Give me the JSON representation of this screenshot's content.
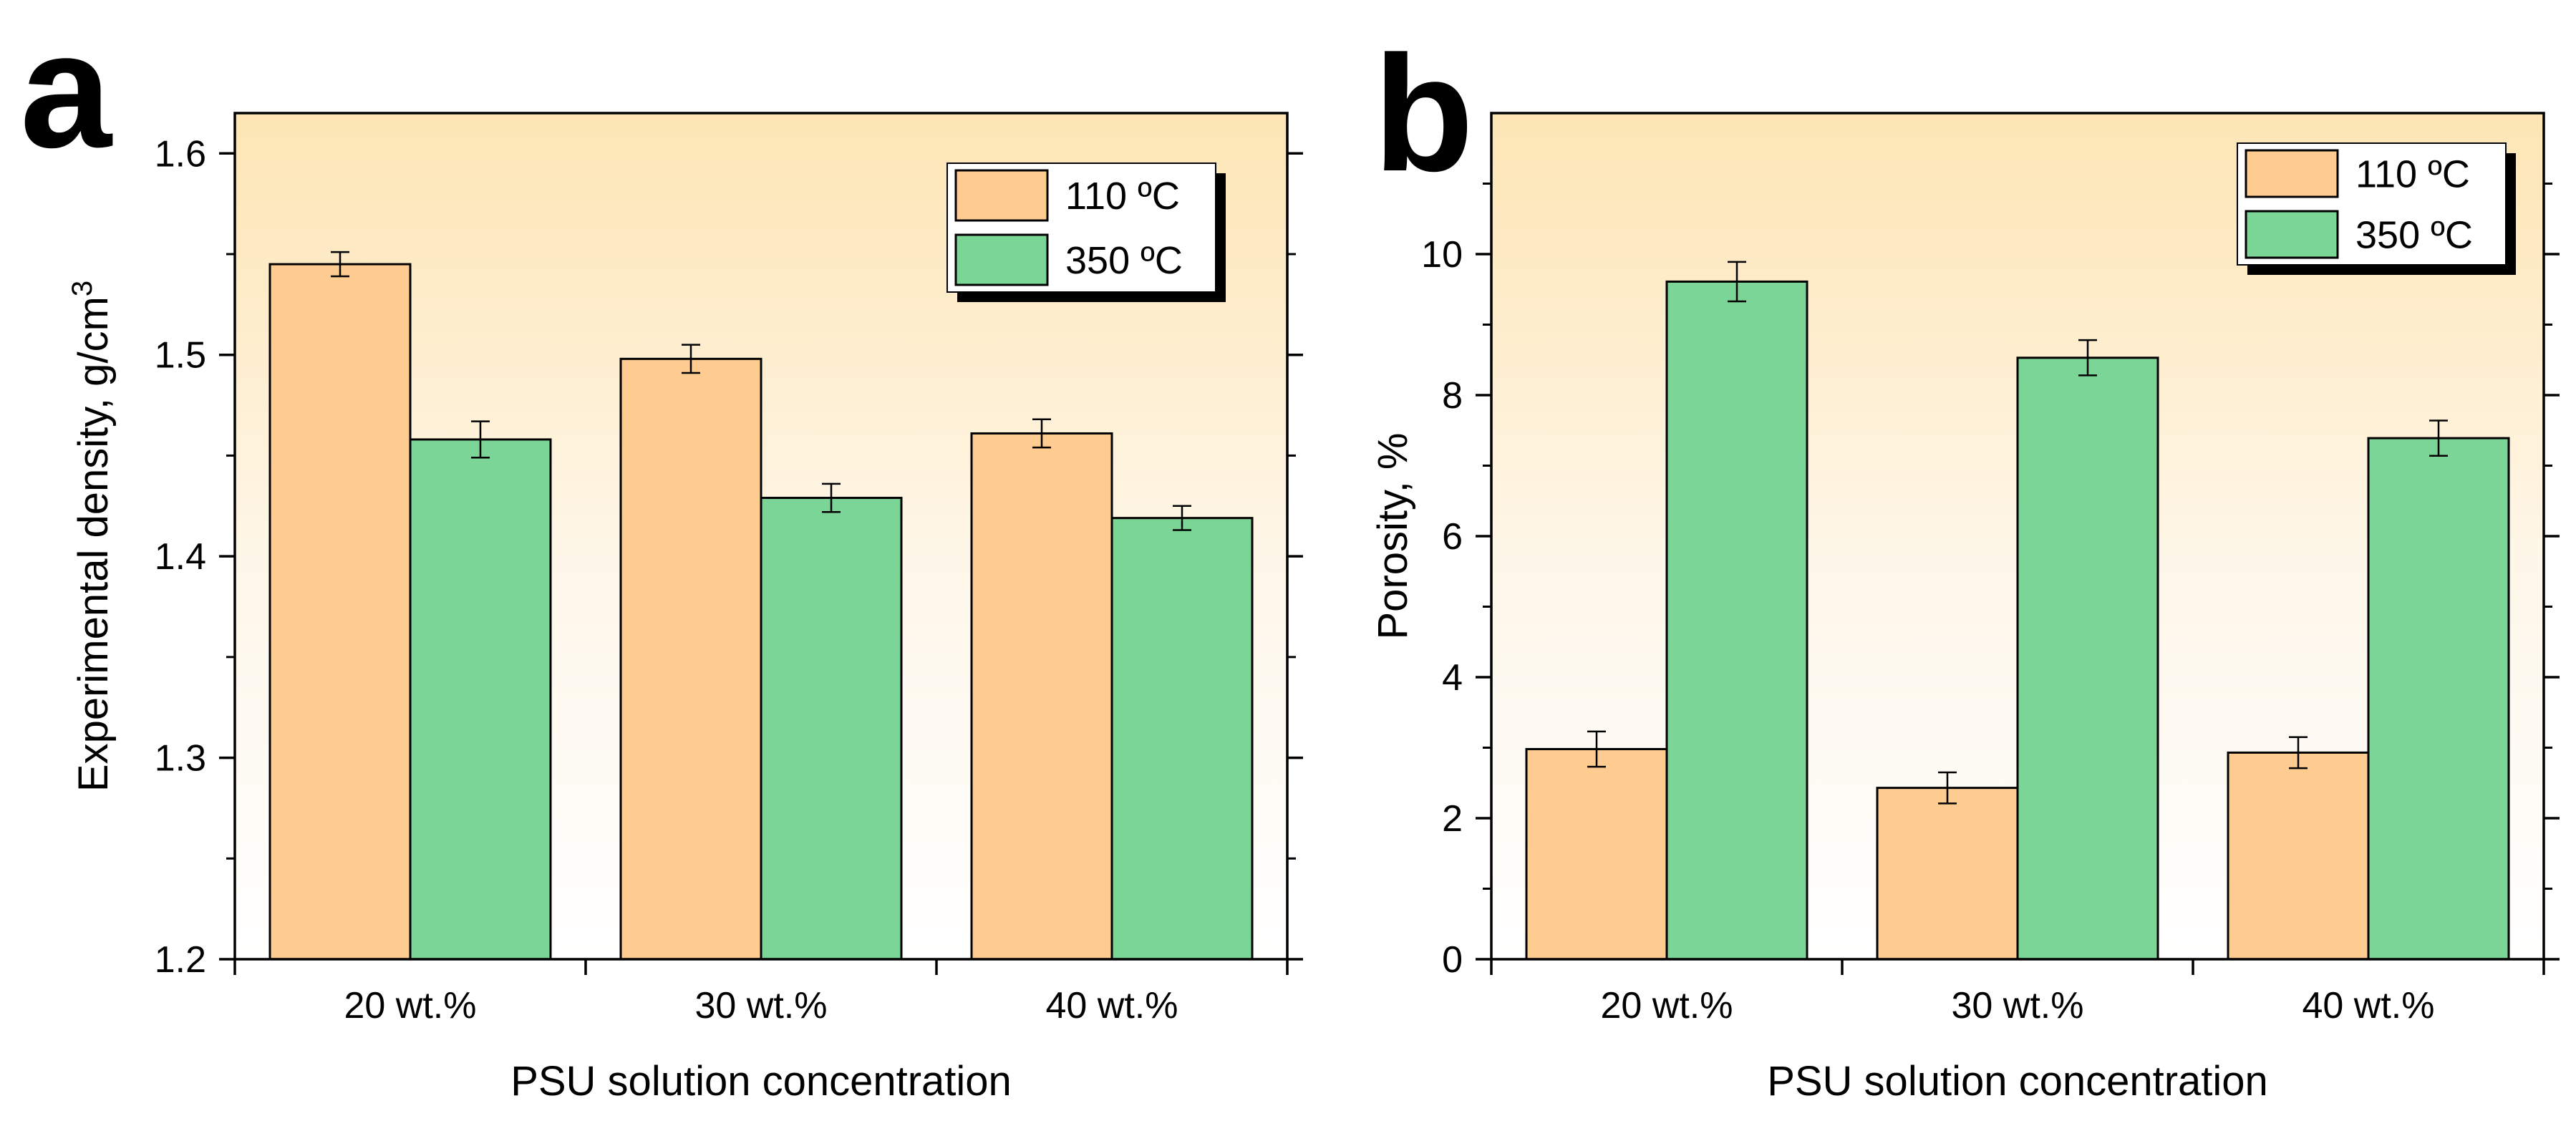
{
  "chart_data": [
    {
      "type": "bar",
      "panel_label": "a",
      "categories": [
        "20 wt.%",
        "30 wt.%",
        "40 wt.%"
      ],
      "series": [
        {
          "name": "110 ºC",
          "values": [
            1.545,
            1.498,
            1.461
          ],
          "errors": [
            0.006,
            0.007,
            0.007
          ],
          "color": "#FECC90"
        },
        {
          "name": "350 ºC",
          "values": [
            1.458,
            1.429,
            1.419
          ],
          "errors": [
            0.009,
            0.007,
            0.006
          ],
          "color": "#7BD596"
        }
      ],
      "xlabel": "PSU solution concentration",
      "ylabel": "Experimental density, g/cm",
      "ylabel_sup": "3",
      "ylim": [
        1.2,
        1.62
      ],
      "yticks": [
        1.2,
        1.3,
        1.4,
        1.5,
        1.6
      ],
      "legend_position": "top-right",
      "grid": false
    },
    {
      "type": "bar",
      "panel_label": "b",
      "categories": [
        "20 wt.%",
        "30 wt.%",
        "40 wt.%"
      ],
      "series": [
        {
          "name": "110 ºC",
          "values": [
            2.98,
            2.43,
            2.93
          ],
          "errors": [
            0.25,
            0.22,
            0.22
          ],
          "color": "#FECC90"
        },
        {
          "name": "350 ºC",
          "values": [
            9.61,
            8.53,
            7.39
          ],
          "errors": [
            0.28,
            0.25,
            0.25
          ],
          "color": "#7BD596"
        }
      ],
      "xlabel": "PSU solution concentration",
      "ylabel": "Porosity, %",
      "ylim": [
        0,
        12
      ],
      "yticks": [
        0,
        2,
        4,
        6,
        8,
        10
      ],
      "legend_position": "top-right",
      "grid": false
    }
  ]
}
